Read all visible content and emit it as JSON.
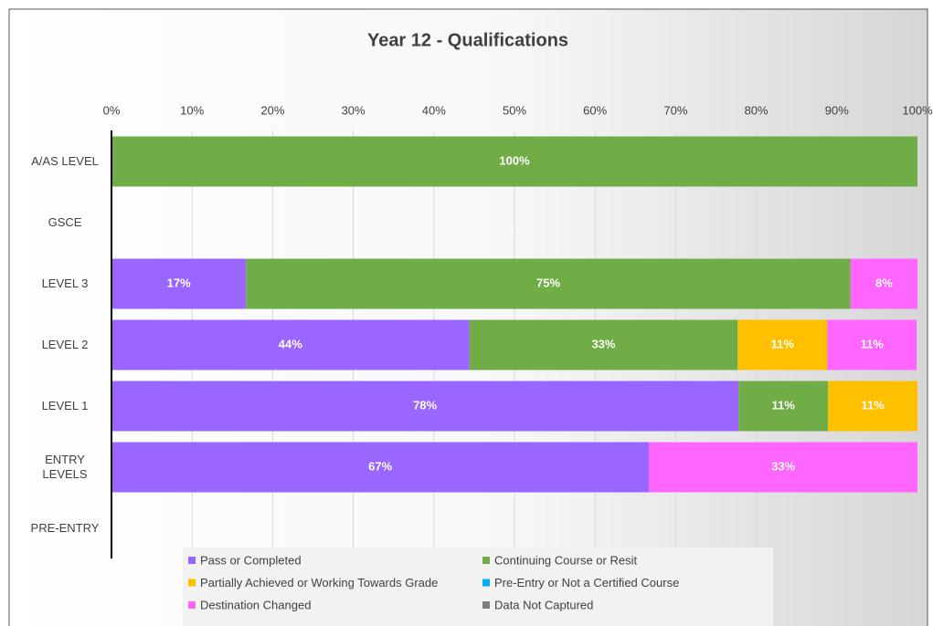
{
  "chart_data": {
    "type": "stacked_barh",
    "title": "Year 12 - Qualifications",
    "categories": [
      "A/AS LEVEL",
      "GSCE",
      "LEVEL 3",
      "LEVEL 2",
      "LEVEL 1",
      "ENTRY LEVELS",
      "PRE-ENTRY"
    ],
    "series": [
      {
        "name": "Pass or Completed",
        "color": "#9966ff",
        "values": [
          null,
          null,
          16.7,
          44.4,
          77.8,
          66.7,
          null
        ],
        "value_labels": [
          null,
          null,
          "17%",
          "44%",
          "78%",
          "67%",
          null
        ]
      },
      {
        "name": "Continuing Course or Resit",
        "color": "#70ad47",
        "values": [
          100,
          null,
          75,
          33.3,
          11.1,
          null,
          null
        ],
        "value_labels": [
          "100%",
          null,
          "75%",
          "33%",
          "11%",
          null,
          null
        ]
      },
      {
        "name": "Partially Achieved or Working Towards Grade",
        "color": "#ffc000",
        "values": [
          null,
          null,
          null,
          11.1,
          11.1,
          null,
          null
        ],
        "value_labels": [
          null,
          null,
          null,
          "11%",
          "11%",
          null,
          null
        ]
      },
      {
        "name": "Pre-Entry or Not a Certified Course",
        "color": "#00b0f0",
        "values": [
          null,
          null,
          null,
          null,
          null,
          null,
          null
        ],
        "value_labels": [
          null,
          null,
          null,
          null,
          null,
          null,
          null
        ]
      },
      {
        "name": "Destination Changed",
        "color": "#ff66ff",
        "values": [
          null,
          null,
          8.3,
          11.1,
          null,
          33.3,
          null
        ],
        "value_labels": [
          null,
          null,
          "8%",
          "11%",
          null,
          "33%",
          null
        ]
      },
      {
        "name": "Data Not Captured",
        "color": "#808080",
        "values": [
          null,
          null,
          null,
          null,
          null,
          null,
          null
        ],
        "value_labels": [
          null,
          null,
          null,
          null,
          null,
          null,
          null
        ]
      }
    ],
    "xlim": [
      0,
      100
    ],
    "xticks": [
      {
        "value": 0,
        "label": "0%"
      },
      {
        "value": 10,
        "label": "10%"
      },
      {
        "value": 20,
        "label": "20%"
      },
      {
        "value": 30,
        "label": "30%"
      },
      {
        "value": 40,
        "label": "40%"
      },
      {
        "value": 50,
        "label": "50%"
      },
      {
        "value": 60,
        "label": "60%"
      },
      {
        "value": 70,
        "label": "70%"
      },
      {
        "value": 80,
        "label": "80%"
      },
      {
        "value": 90,
        "label": "90%"
      },
      {
        "value": 100,
        "label": "100%"
      }
    ],
    "grid": true,
    "legend": "bottom"
  }
}
